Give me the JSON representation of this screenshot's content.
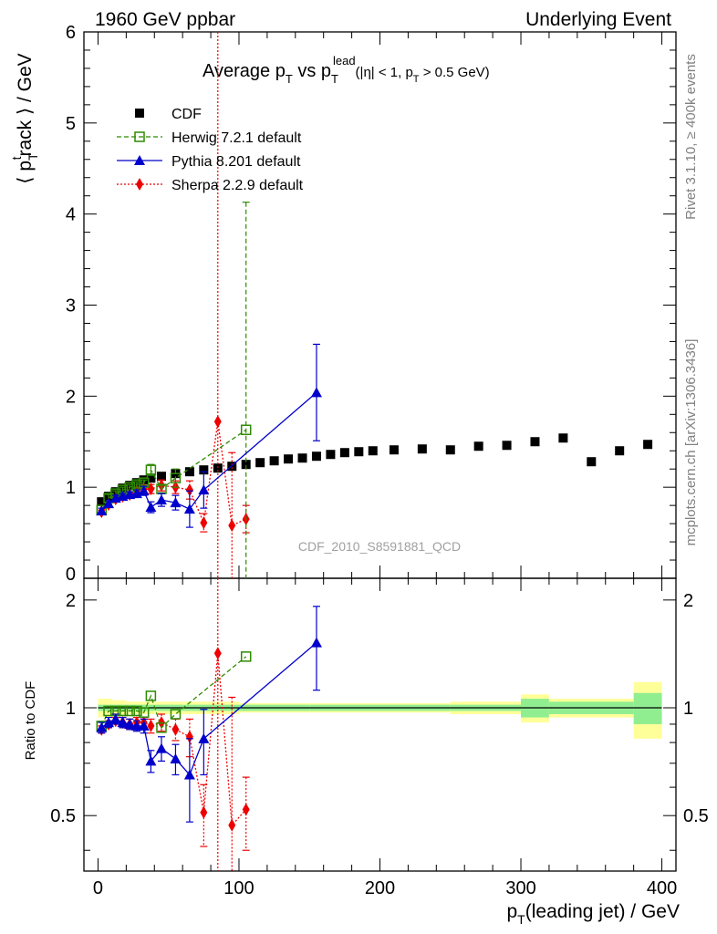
{
  "header": {
    "left": "1960 GeV ppbar",
    "right": "Underlying Event"
  },
  "side_labels": {
    "rivet": "Rivet 3.1.10, ≥ 400k events",
    "mcplots": "mcplots.cern.ch [arXiv:1306.3436]"
  },
  "watermark": "CDF_2010_S8591881_QCD",
  "main_plot": {
    "title": {
      "a": "Average p",
      "a_sub": "T",
      "b": " vs p",
      "b_sub": "T",
      "b_sup": "lead",
      "c": "(|η| < 1, p",
      "c_sub": "T",
      "d": " > 0.5 GeV)"
    },
    "ylabel": {
      "pre": "⟨ p",
      "sub": "T",
      "sup": "t",
      "post": "rack ⟩ / GeV"
    }
  },
  "ratio_plot": {
    "ylabel": "Ratio to CDF"
  },
  "xlabel": {
    "pre": "p",
    "sub": "T",
    "post": "(leading jet) / GeV"
  },
  "legend": {
    "position": "top-left",
    "entries": [
      "CDF",
      "Herwig 7.2.1 default",
      "Pythia 8.201 default",
      "Sherpa 2.2.9 default"
    ]
  },
  "colors": {
    "cdf": "#000000",
    "herwig": "#2e8b00",
    "pythia": "#0000cc",
    "sherpa": "#ee0000",
    "band_inner": "#90ee90",
    "band_outer": "#ffff99"
  },
  "chart_data": [
    {
      "type": "scatter",
      "panel": "main",
      "xlabel": "pT(leading jet) / GeV",
      "ylabel": "⟨ pTtrack ⟩ / GeV",
      "xlim": [
        -10,
        410
      ],
      "ylim": [
        0,
        6
      ],
      "xticks": [
        0,
        100,
        200,
        300,
        400
      ],
      "yticks": [
        0,
        1,
        2,
        3,
        4,
        5,
        6
      ],
      "series": [
        {
          "name": "CDF",
          "marker": "square",
          "x": [
            2.5,
            7.5,
            12.5,
            17.5,
            22.5,
            27.5,
            32.5,
            37.5,
            45,
            55,
            65,
            75,
            85,
            95,
            105,
            115,
            125,
            135,
            145,
            155,
            165,
            175,
            185,
            195,
            210,
            230,
            250,
            270,
            290,
            310,
            330,
            350,
            370,
            390
          ],
          "y": [
            0.84,
            0.9,
            0.95,
            0.99,
            1.02,
            1.05,
            1.08,
            1.1,
            1.12,
            1.15,
            1.17,
            1.19,
            1.21,
            1.23,
            1.25,
            1.27,
            1.29,
            1.31,
            1.32,
            1.34,
            1.36,
            1.38,
            1.39,
            1.4,
            1.41,
            1.42,
            1.41,
            1.45,
            1.46,
            1.5,
            1.54,
            1.28,
            1.4,
            1.47
          ]
        },
        {
          "name": "Herwig 7.2.1 default",
          "marker": "open-square",
          "x": [
            2.5,
            7.5,
            12.5,
            17.5,
            22.5,
            27.5,
            32.5,
            37.5,
            45,
            55,
            105
          ],
          "y": [
            0.75,
            0.88,
            0.93,
            0.97,
            1.0,
            1.03,
            1.05,
            1.19,
            0.98,
            1.1,
            1.63
          ],
          "err": [
            0.05,
            0.04,
            0.03,
            0.03,
            0.03,
            0.03,
            0.03,
            0.06,
            0.04,
            0.1,
            2.5
          ]
        },
        {
          "name": "Pythia 8.201 default",
          "marker": "triangle",
          "x": [
            2.5,
            7.5,
            12.5,
            17.5,
            22.5,
            27.5,
            32.5,
            37.5,
            45,
            55,
            65,
            75,
            155
          ],
          "y": [
            0.74,
            0.82,
            0.88,
            0.9,
            0.92,
            0.93,
            0.96,
            0.78,
            0.86,
            0.83,
            0.76,
            0.97,
            2.04
          ],
          "err": [
            0.03,
            0.03,
            0.03,
            0.03,
            0.03,
            0.04,
            0.05,
            0.06,
            0.07,
            0.08,
            0.2,
            0.2,
            0.53
          ]
        },
        {
          "name": "Sherpa 2.2.9 default",
          "marker": "diamond",
          "x": [
            2.5,
            7.5,
            12.5,
            17.5,
            22.5,
            27.5,
            32.5,
            37.5,
            45,
            55,
            65,
            75,
            85,
            95,
            105
          ],
          "y": [
            0.73,
            0.81,
            0.87,
            0.9,
            0.92,
            0.96,
            0.98,
            0.98,
            1.02,
            1.0,
            0.97,
            0.61,
            1.72,
            0.58,
            0.65
          ],
          "err": [
            0.02,
            0.02,
            0.02,
            0.03,
            0.03,
            0.03,
            0.04,
            0.05,
            0.06,
            0.07,
            0.1,
            0.1,
            5.0,
            0.8,
            0.15
          ]
        }
      ]
    },
    {
      "type": "scatter",
      "panel": "ratio",
      "ylabel": "Ratio to CDF",
      "xlim": [
        -10,
        410
      ],
      "ylim": [
        0.35,
        2.3
      ],
      "yticks": [
        0.5,
        1,
        2
      ],
      "series": [
        {
          "name": "Herwig 7.2.1 default",
          "x": [
            2.5,
            7.5,
            12.5,
            17.5,
            22.5,
            27.5,
            32.5,
            37.5,
            45,
            55,
            105
          ],
          "y": [
            0.89,
            0.98,
            0.98,
            0.98,
            0.98,
            0.98,
            0.97,
            1.08,
            0.88,
            0.96,
            1.39
          ]
        },
        {
          "name": "Pythia 8.201 default",
          "x": [
            2.5,
            7.5,
            12.5,
            17.5,
            22.5,
            27.5,
            32.5,
            37.5,
            45,
            55,
            65,
            75,
            155
          ],
          "y": [
            0.88,
            0.91,
            0.93,
            0.91,
            0.9,
            0.89,
            0.89,
            0.71,
            0.77,
            0.72,
            0.65,
            0.82,
            1.52
          ],
          "err": [
            0.03,
            0.03,
            0.03,
            0.03,
            0.03,
            0.03,
            0.04,
            0.05,
            0.06,
            0.07,
            0.17,
            0.17,
            0.4
          ]
        },
        {
          "name": "Sherpa 2.2.9 default",
          "x": [
            2.5,
            7.5,
            12.5,
            17.5,
            22.5,
            27.5,
            32.5,
            37.5,
            45,
            55,
            65,
            75,
            85,
            95,
            105
          ],
          "y": [
            0.87,
            0.9,
            0.92,
            0.91,
            0.9,
            0.91,
            0.91,
            0.89,
            0.91,
            0.87,
            0.83,
            0.51,
            1.42,
            0.47,
            0.52
          ],
          "err": [
            0.02,
            0.02,
            0.02,
            0.03,
            0.03,
            0.03,
            0.03,
            0.04,
            0.05,
            0.06,
            0.1,
            0.1,
            5.0,
            0.6,
            0.12
          ]
        },
        {
          "name": "CDF uncertainty band",
          "x_edges": [
            0,
            10,
            20,
            30,
            40,
            60,
            100,
            150,
            200,
            250,
            300,
            320,
            380,
            400
          ],
          "inner": [
            0.02,
            0.02,
            0.02,
            0.02,
            0.02,
            0.02,
            0.02,
            0.02,
            0.02,
            0.02,
            0.06,
            0.04,
            0.1,
            0.2
          ],
          "outer": [
            0.06,
            0.05,
            0.04,
            0.04,
            0.04,
            0.04,
            0.03,
            0.03,
            0.03,
            0.04,
            0.09,
            0.06,
            0.18,
            0.27
          ]
        }
      ]
    }
  ]
}
